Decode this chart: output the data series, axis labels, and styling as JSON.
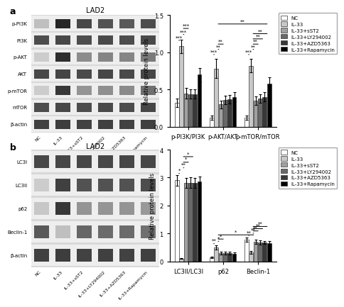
{
  "title_a": "LAD2",
  "title_b": "LAD2",
  "legend_labels": [
    "NC",
    "IL-33",
    "IL-33+sST2",
    "IL-33+LY294002",
    "IL-33+AZD5363",
    "IL-33+Rapamycin"
  ],
  "bar_colors": [
    "#ffffff",
    "#c8c8c8",
    "#a0a0a0",
    "#686868",
    "#383838",
    "#000000"
  ],
  "bar_edge_color": "#333333",
  "groups_a": [
    "p-PI3K/PI3K",
    "p-AKT/AKT",
    "p-mTOR/mTOR"
  ],
  "values_a": [
    [
      0.32,
      1.08,
      0.45,
      0.44,
      0.44,
      0.7
    ],
    [
      0.12,
      0.78,
      0.3,
      0.36,
      0.37,
      0.4
    ],
    [
      0.12,
      0.82,
      0.35,
      0.38,
      0.4,
      0.58
    ]
  ],
  "errors_a": [
    [
      0.06,
      0.09,
      0.07,
      0.06,
      0.06,
      0.09
    ],
    [
      0.03,
      0.13,
      0.05,
      0.06,
      0.06,
      0.06
    ],
    [
      0.03,
      0.09,
      0.06,
      0.06,
      0.06,
      0.08
    ]
  ],
  "ylim_a": [
    0.0,
    1.5
  ],
  "yticks_a": [
    0.0,
    0.5,
    1.0,
    1.5
  ],
  "ylabel_a": "Relative protein levels",
  "groups_b": [
    "LC3II/LC3I",
    "p62",
    "Beclin-1"
  ],
  "values_b": [
    [
      2.9,
      0.1,
      2.8,
      2.82,
      2.8,
      2.85
    ],
    [
      0.15,
      0.5,
      0.3,
      0.3,
      0.3,
      0.28
    ],
    [
      0.78,
      0.32,
      0.7,
      0.68,
      0.68,
      0.66
    ]
  ],
  "errors_b": [
    [
      0.2,
      0.02,
      0.18,
      0.18,
      0.18,
      0.2
    ],
    [
      0.02,
      0.07,
      0.05,
      0.05,
      0.05,
      0.04
    ],
    [
      0.07,
      0.04,
      0.07,
      0.07,
      0.06,
      0.06
    ]
  ],
  "ylim_b": [
    0.0,
    4.0
  ],
  "yticks_b": [
    0.0,
    1.0,
    2.0,
    3.0,
    4.0
  ],
  "ylabel_b": "Relative protein levels",
  "blot_labels_a": [
    "p-PI3K",
    "PI3K",
    "p-AKT",
    "AKT",
    "p-mTOR",
    "mTOR",
    "β-actin"
  ],
  "blot_labels_b": [
    "LC3I",
    "LC3II",
    "p62",
    "Beclin-1",
    "β-actin"
  ],
  "lane_labels": [
    "NC",
    "IL-33",
    "IL-33+sST2",
    "IL-33+LY294002",
    "IL-33+AZD5363",
    "IL-33+Rapamycin"
  ],
  "blot_intensities_a": [
    [
      0.25,
      0.85,
      0.72,
      0.68,
      0.65,
      0.7
    ],
    [
      0.7,
      0.72,
      0.7,
      0.71,
      0.7,
      0.71
    ],
    [
      0.2,
      0.82,
      0.45,
      0.48,
      0.48,
      0.52
    ],
    [
      0.72,
      0.73,
      0.71,
      0.72,
      0.71,
      0.72
    ],
    [
      0.2,
      0.78,
      0.42,
      0.44,
      0.46,
      0.56
    ],
    [
      0.7,
      0.72,
      0.7,
      0.71,
      0.7,
      0.72
    ],
    [
      0.75,
      0.76,
      0.74,
      0.75,
      0.74,
      0.75
    ]
  ],
  "blot_intensities_b": [
    [
      0.72,
      0.72,
      0.72,
      0.72,
      0.72,
      0.72
    ],
    [
      0.2,
      0.75,
      0.68,
      0.68,
      0.68,
      0.7
    ],
    [
      0.22,
      0.78,
      0.42,
      0.42,
      0.42,
      0.4
    ],
    [
      0.65,
      0.25,
      0.6,
      0.58,
      0.58,
      0.56
    ],
    [
      0.75,
      0.76,
      0.74,
      0.75,
      0.74,
      0.75
    ]
  ]
}
